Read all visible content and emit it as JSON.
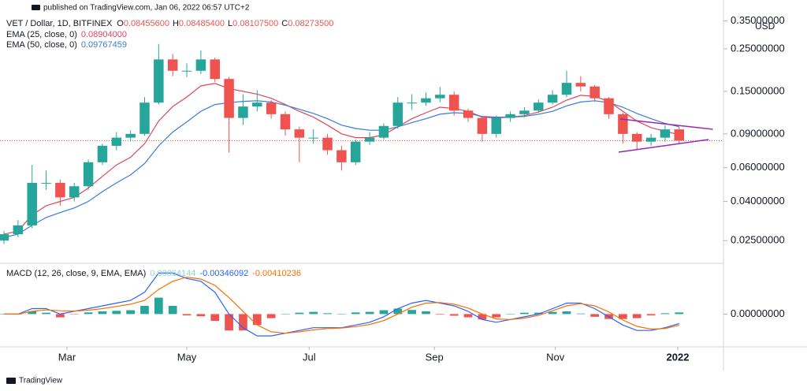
{
  "header": "published on TradingView.com, Jan 06, 2022 06:57 UTC+2",
  "footer": "TradingView",
  "chart_data": [
    {
      "type": "candlestick",
      "title": "VET / Dollar, 1D, BITFINEX",
      "ohlc_legend": [
        [
          "O",
          "0.08455600"
        ],
        [
          "H",
          "0.08485400"
        ],
        [
          "L",
          "0.08107500"
        ],
        [
          "C",
          "0.08273500"
        ]
      ],
      "unit": "USD",
      "log_scale": true,
      "xlim": [
        -0.28,
        51.15
      ],
      "ylim": [
        0.0194,
        0.449
      ],
      "yticks": [
        {
          "value": 0.35,
          "label": "0.35000000"
        },
        {
          "value": 0.25,
          "label": "0.25000000"
        },
        {
          "value": 0.15,
          "label": "0.15000000"
        },
        {
          "value": 0.09,
          "label": "0.09000000"
        },
        {
          "value": 0.06,
          "label": "0.06000000"
        },
        {
          "value": 0.04,
          "label": "0.04000000"
        },
        {
          "value": 0.025,
          "label": "0.02500000"
        }
      ],
      "up_color": "#26a69a",
      "down_color": "#ef5350",
      "open": [
        0.025,
        0.027,
        0.03,
        0.05,
        0.05,
        0.042,
        0.048,
        0.064,
        0.078,
        0.086,
        0.09,
        0.131,
        0.22,
        0.192,
        0.192,
        0.22,
        0.174,
        0.109,
        0.125,
        0.131,
        0.114,
        0.095,
        0.086,
        0.086,
        0.074,
        0.064,
        0.082,
        0.086,
        0.099,
        0.131,
        0.131,
        0.138,
        0.144,
        0.119,
        0.109,
        0.09,
        0.109,
        0.114,
        0.119,
        0.131,
        0.144,
        0.166,
        0.159,
        0.138,
        0.114,
        0.09,
        0.082,
        0.086,
        0.095
      ],
      "high": [
        0.028,
        0.032,
        0.062,
        0.058,
        0.052,
        0.05,
        0.066,
        0.08,
        0.092,
        0.094,
        0.14,
        0.265,
        0.235,
        0.21,
        0.245,
        0.225,
        0.178,
        0.145,
        0.152,
        0.135,
        0.118,
        0.098,
        0.095,
        0.09,
        0.078,
        0.084,
        0.092,
        0.102,
        0.14,
        0.145,
        0.148,
        0.158,
        0.15,
        0.122,
        0.112,
        0.112,
        0.118,
        0.124,
        0.136,
        0.152,
        0.192,
        0.18,
        0.162,
        0.14,
        0.116,
        0.092,
        0.09,
        0.1,
        0.098
      ],
      "low": [
        0.024,
        0.026,
        0.029,
        0.046,
        0.038,
        0.04,
        0.046,
        0.062,
        0.074,
        0.082,
        0.088,
        0.128,
        0.18,
        0.178,
        0.185,
        0.168,
        0.072,
        0.1,
        0.118,
        0.108,
        0.088,
        0.064,
        0.08,
        0.07,
        0.058,
        0.062,
        0.079,
        0.084,
        0.096,
        0.12,
        0.126,
        0.132,
        0.112,
        0.104,
        0.082,
        0.086,
        0.104,
        0.11,
        0.116,
        0.128,
        0.14,
        0.15,
        0.132,
        0.108,
        0.08,
        0.074,
        0.078,
        0.082,
        0.08
      ],
      "close": [
        0.027,
        0.03,
        0.05,
        0.05,
        0.042,
        0.048,
        0.064,
        0.078,
        0.086,
        0.09,
        0.131,
        0.22,
        0.192,
        0.192,
        0.22,
        0.174,
        0.109,
        0.125,
        0.131,
        0.114,
        0.095,
        0.086,
        0.086,
        0.074,
        0.064,
        0.082,
        0.086,
        0.099,
        0.131,
        0.131,
        0.138,
        0.144,
        0.119,
        0.109,
        0.09,
        0.109,
        0.114,
        0.119,
        0.131,
        0.144,
        0.166,
        0.159,
        0.138,
        0.114,
        0.09,
        0.082,
        0.086,
        0.095,
        0.083
      ],
      "series": [
        {
          "name": "EMA (25, close, 0)",
          "last_label": "0.08904000",
          "color": "#e0455e",
          "values": [
            0.027,
            0.028,
            0.034,
            0.038,
            0.04,
            0.042,
            0.047,
            0.054,
            0.062,
            0.068,
            0.08,
            0.105,
            0.125,
            0.14,
            0.16,
            0.165,
            0.155,
            0.15,
            0.145,
            0.138,
            0.128,
            0.118,
            0.11,
            0.1,
            0.09,
            0.086,
            0.086,
            0.089,
            0.098,
            0.108,
            0.116,
            0.124,
            0.122,
            0.118,
            0.11,
            0.109,
            0.11,
            0.112,
            0.117,
            0.124,
            0.135,
            0.143,
            0.141,
            0.133,
            0.118,
            0.105,
            0.097,
            0.093,
            0.089
          ]
        },
        {
          "name": "EMA (50, close, 0)",
          "last_label": "0.09767459",
          "color": "#3a7bd5",
          "values": [
            0.026,
            0.027,
            0.03,
            0.033,
            0.035,
            0.037,
            0.04,
            0.045,
            0.05,
            0.055,
            0.063,
            0.078,
            0.092,
            0.104,
            0.118,
            0.128,
            0.131,
            0.133,
            0.134,
            0.132,
            0.127,
            0.121,
            0.115,
            0.108,
            0.1,
            0.096,
            0.094,
            0.094,
            0.098,
            0.103,
            0.108,
            0.114,
            0.116,
            0.115,
            0.111,
            0.11,
            0.11,
            0.111,
            0.114,
            0.118,
            0.126,
            0.132,
            0.134,
            0.131,
            0.124,
            0.115,
            0.108,
            0.102,
            0.098
          ]
        }
      ],
      "trendlines": {
        "color": "#9c27b0",
        "lines": [
          {
            "x": [
              43.8,
              50.4
            ],
            "y": [
              0.1077,
              0.0951
            ]
          },
          {
            "x": [
              43.7,
              50.1
            ],
            "y": [
              0.0723,
              0.0841
            ]
          }
        ]
      }
    },
    {
      "type": "macd",
      "title": "MACD (12, 26, close, 9, EMA, EMA)",
      "xlim": [
        -0.28,
        51.15
      ],
      "ylim": [
        -0.012,
        0.018
      ],
      "yticks": [
        {
          "value": 0,
          "label": "0.00000000"
        }
      ],
      "xticks": [
        {
          "value": 4.48,
          "label": "Mar"
        },
        {
          "value": 13.0,
          "label": "May"
        },
        {
          "value": 21.7,
          "label": "Jul"
        },
        {
          "value": 30.6,
          "label": "Sep"
        },
        {
          "value": 39.2,
          "label": "Nov"
        },
        {
          "value": 47.9,
          "label": "2022"
        }
      ],
      "histogram": {
        "last_label": "0.00064144",
        "up_color": "#26a69a",
        "down_color": "#ef5350",
        "label_color": "#8fd3cc",
        "values": [
          0,
          0,
          0.001,
          0.0005,
          -0.0012,
          -0.0001,
          0.0006,
          0.001,
          0.0012,
          0.0014,
          0.003,
          0.006,
          0.003,
          -0.0005,
          -0.0008,
          -0.0025,
          -0.006,
          -0.006,
          -0.004,
          -0.0015,
          0,
          0.0005,
          0.0008,
          0.0003,
          0.0001,
          0.0006,
          0.0008,
          0.0014,
          0.002,
          0.0015,
          0.001,
          -0.0002,
          -0.0006,
          -0.0012,
          -0.002,
          -0.0012,
          0,
          0.0005,
          0.0005,
          0.0008,
          0.001,
          0.0002,
          -0.001,
          -0.0018,
          -0.0018,
          -0.0015,
          -0.0005,
          0.0003,
          0.0006
        ]
      },
      "series": [
        {
          "last_label": "-0.00346092",
          "color": "#2962ff",
          "values": [
            0,
            0,
            0.002,
            0.002,
            0,
            0.001,
            0.002,
            0.003,
            0.004,
            0.005,
            0.008,
            0.015,
            0.015,
            0.013,
            0.012,
            0.008,
            0,
            -0.005,
            -0.008,
            -0.008,
            -0.007,
            -0.006,
            -0.005,
            -0.005,
            -0.005,
            -0.004,
            -0.003,
            -0.001,
            0.002,
            0.004,
            0.005,
            0.004,
            0.003,
            0.001,
            -0.002,
            -0.003,
            -0.002,
            -0.001,
            0,
            0.002,
            0.004,
            0.004,
            0.002,
            -0.001,
            -0.004,
            -0.006,
            -0.006,
            -0.005,
            -0.0035
          ]
        },
        {
          "last_label": "-0.00410236",
          "color": "#ff6d00",
          "values": [
            0,
            0,
            0.001,
            0.0015,
            0.0012,
            0.0011,
            0.0014,
            0.002,
            0.0028,
            0.0036,
            0.005,
            0.009,
            0.012,
            0.0135,
            0.0128,
            0.0105,
            0.006,
            0.001,
            -0.004,
            -0.0065,
            -0.007,
            -0.0065,
            -0.0058,
            -0.0053,
            -0.0051,
            -0.0046,
            -0.0038,
            -0.0024,
            0,
            0.0025,
            0.004,
            0.0042,
            0.0036,
            0.0022,
            0,
            -0.0018,
            -0.002,
            -0.0015,
            -0.0005,
            0.0012,
            0.003,
            0.0038,
            0.003,
            0.0008,
            -0.0022,
            -0.0045,
            -0.0055,
            -0.0053,
            -0.0041
          ]
        }
      ]
    }
  ]
}
